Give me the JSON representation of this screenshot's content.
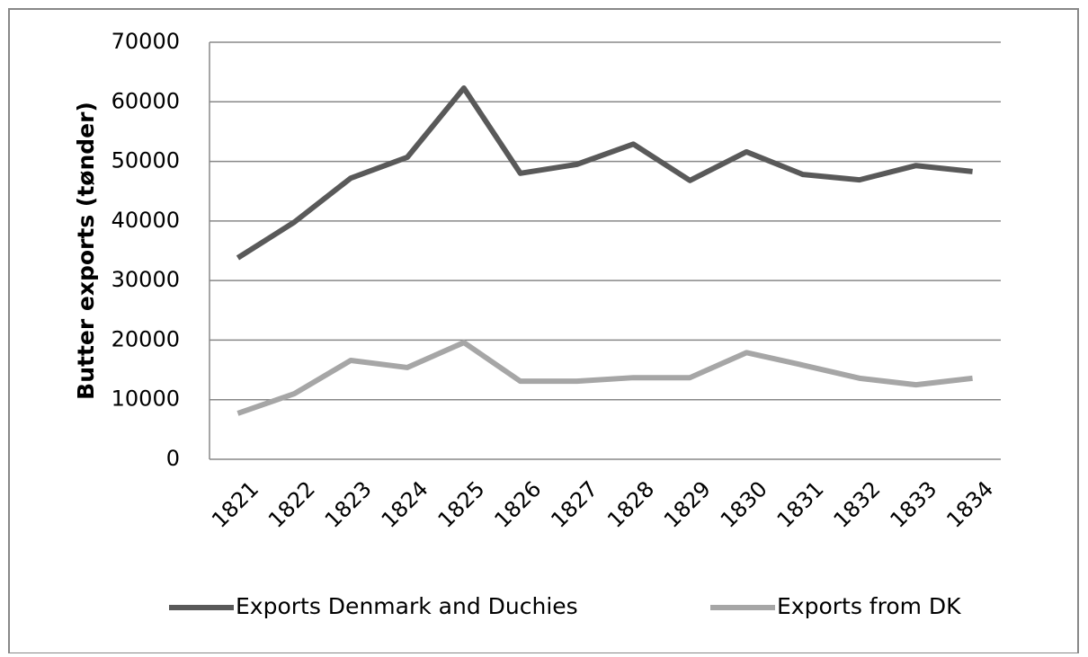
{
  "chart_data": {
    "type": "line",
    "y_label": "Butter exports (tønder)",
    "categories": [
      "1821",
      "1822",
      "1823",
      "1824",
      "1825",
      "1826",
      "1827",
      "1828",
      "1829",
      "1830",
      "1831",
      "1832",
      "1833",
      "1834"
    ],
    "series": [
      {
        "name": "Exports Denmark and Duchies",
        "color": "#595959",
        "values": [
          33800,
          39800,
          47200,
          50700,
          62300,
          48000,
          49500,
          52900,
          46800,
          51600,
          47800,
          46900,
          49300,
          48300
        ]
      },
      {
        "name": "Exports from DK",
        "color": "#a6a6a6",
        "values": [
          7700,
          11000,
          16600,
          15400,
          19600,
          13100,
          13100,
          13700,
          13700,
          17900,
          15800,
          13600,
          12500,
          13600
        ]
      }
    ],
    "ylim": [
      0,
      70000
    ],
    "yticks": [
      0,
      10000,
      20000,
      30000,
      40000,
      50000,
      60000,
      70000
    ],
    "grid": true
  }
}
